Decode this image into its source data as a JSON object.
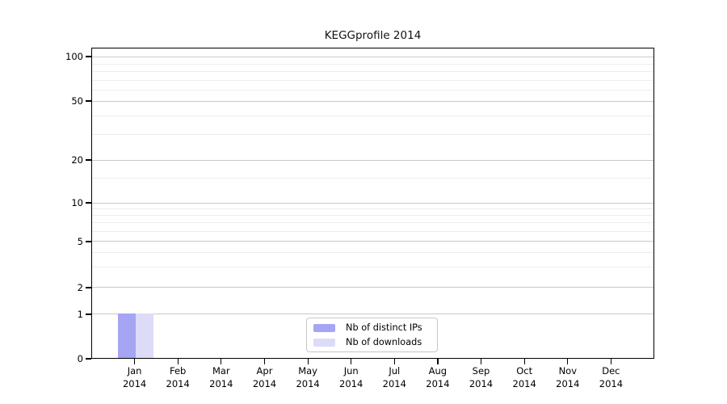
{
  "chart_data": {
    "type": "bar",
    "title": "KEGGprofile 2014",
    "months": [
      "Jan",
      "Feb",
      "Mar",
      "Apr",
      "May",
      "Jun",
      "Jul",
      "Aug",
      "Sep",
      "Oct",
      "Nov",
      "Dec"
    ],
    "year": "2014",
    "series": [
      {
        "name": "Nb of distinct IPs",
        "color": "#a5a5f3",
        "values": [
          1,
          0,
          0,
          0,
          0,
          0,
          0,
          0,
          0,
          0,
          0,
          0
        ]
      },
      {
        "name": "Nb of downloads",
        "color": "#dcdcf8",
        "values": [
          1,
          0,
          0,
          0,
          0,
          0,
          0,
          0,
          0,
          0,
          0,
          0
        ]
      }
    ],
    "y_axis": {
      "ticks": [
        0,
        1,
        2,
        5,
        10,
        20,
        50,
        100
      ],
      "minor_gridlines": [
        3,
        4,
        6,
        7,
        8,
        9,
        15,
        30,
        40,
        60,
        70,
        80,
        90
      ],
      "scale": "log-like",
      "range": [
        0,
        100
      ]
    },
    "xlabel": "",
    "ylabel": "",
    "grid": true,
    "legend_position": "bottom-center",
    "frame_color": "#000000",
    "major_grid_color": "#c9c9c9",
    "minor_grid_color": "#ededed"
  }
}
